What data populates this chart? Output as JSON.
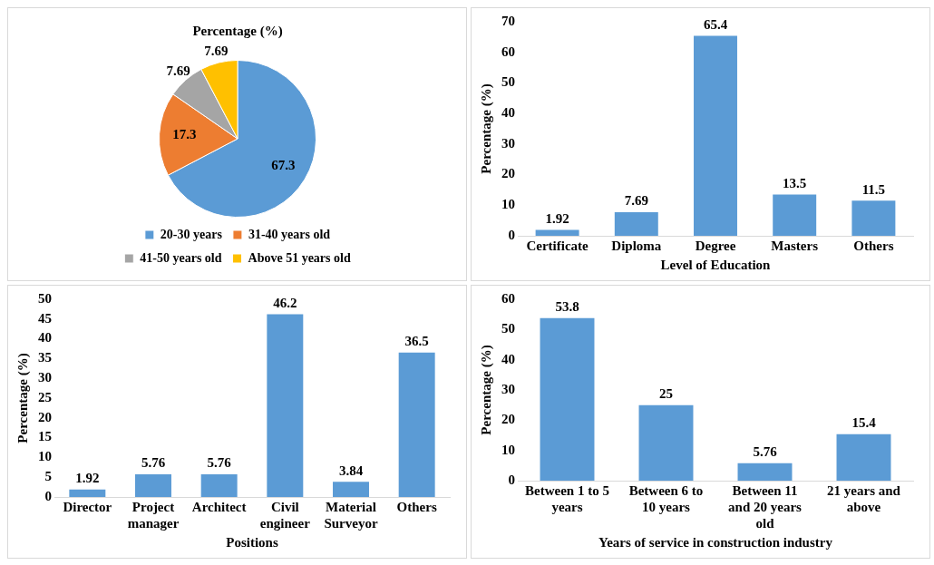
{
  "chart_data": [
    {
      "type": "pie",
      "title": "Percentage (%)",
      "categories": [
        "20-30 years",
        "31-40 years old",
        "41-50 years old",
        "Above 51 years old"
      ],
      "values": [
        67.3,
        17.3,
        7.69,
        7.69
      ],
      "colors": [
        "#5b9bd5",
        "#ed7d31",
        "#a5a5a5",
        "#ffc000"
      ],
      "data_labels": true,
      "legend": "bottom"
    },
    {
      "type": "bar",
      "xlabel": "Level of Education",
      "ylabel": "Percentage (%)",
      "categories": [
        "Certificate",
        "Diploma",
        "Degree",
        "Masters",
        "Others"
      ],
      "values": [
        1.92,
        7.69,
        65.4,
        13.5,
        11.5
      ],
      "color": "#5b9bd5",
      "ylim": [
        0,
        70
      ],
      "yticks": [
        0,
        10,
        20,
        30,
        40,
        50,
        60,
        70
      ],
      "grid": false,
      "data_labels": true,
      "legend": false
    },
    {
      "type": "bar",
      "xlabel": "Positions",
      "ylabel": "Percentage (%)",
      "categories": [
        "Director",
        "Project manager",
        "Architect",
        "Civil engineer",
        "Material Surveyor",
        "Others"
      ],
      "values": [
        1.92,
        5.76,
        5.76,
        46.2,
        3.84,
        36.5
      ],
      "color": "#5b9bd5",
      "ylim": [
        0,
        50
      ],
      "yticks": [
        0,
        5,
        10,
        15,
        20,
        25,
        30,
        35,
        40,
        45,
        50
      ],
      "grid": false,
      "data_labels": true,
      "legend": false
    },
    {
      "type": "bar",
      "xlabel": "Years of service in construction industry",
      "ylabel": "Percentage (%)",
      "categories": [
        "Between 1 to 5 years",
        "Between 6 to 10 years",
        "Between 11 and 20 years old",
        "21 years and above"
      ],
      "values": [
        53.8,
        25,
        5.76,
        15.4
      ],
      "color": "#5b9bd5",
      "ylim": [
        0,
        60
      ],
      "yticks": [
        0,
        10,
        20,
        30,
        40,
        50,
        60
      ],
      "grid": false,
      "data_labels": true,
      "legend": false
    }
  ]
}
